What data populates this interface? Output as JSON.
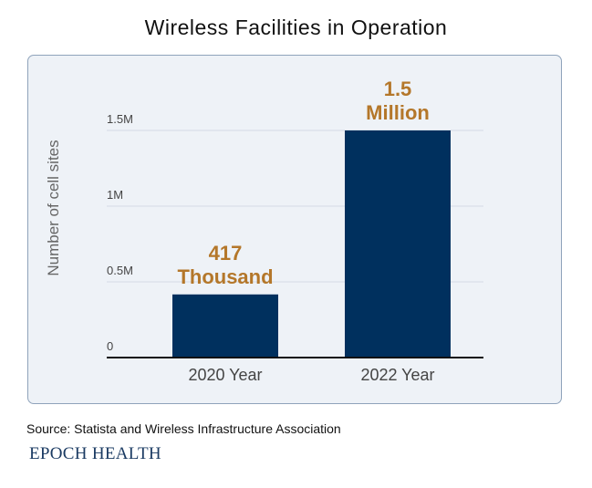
{
  "source_text": "Source: Statista and Wireless Infrastructure Association",
  "brand_text": "EPOCH HEALTH",
  "colors": {
    "bar": "#00305e",
    "value_label": "#b4772a",
    "panel_bg": "#eef2f7",
    "panel_border": "#8fa3bb",
    "axis": "#111111",
    "grid": "#d4dbe4",
    "tick_text": "#444444",
    "ylabel_text": "#666666"
  },
  "chart_data": {
    "type": "bar",
    "title": "Wireless Facilities in Operation",
    "xlabel": "",
    "ylabel": "Number of cell sites",
    "categories": [
      "2020 Year",
      "2022 Year"
    ],
    "values": [
      417000,
      1500000
    ],
    "value_labels": [
      [
        "417",
        "Thousand"
      ],
      [
        "1.5",
        "Million"
      ]
    ],
    "yticks": [
      {
        "value": 0,
        "label": "0"
      },
      {
        "value": 500000,
        "label": "0.5M"
      },
      {
        "value": 1000000,
        "label": "1M"
      },
      {
        "value": 1500000,
        "label": "1.5M"
      }
    ],
    "ylim": [
      0,
      1500000
    ],
    "grid": true,
    "legend": "none"
  }
}
